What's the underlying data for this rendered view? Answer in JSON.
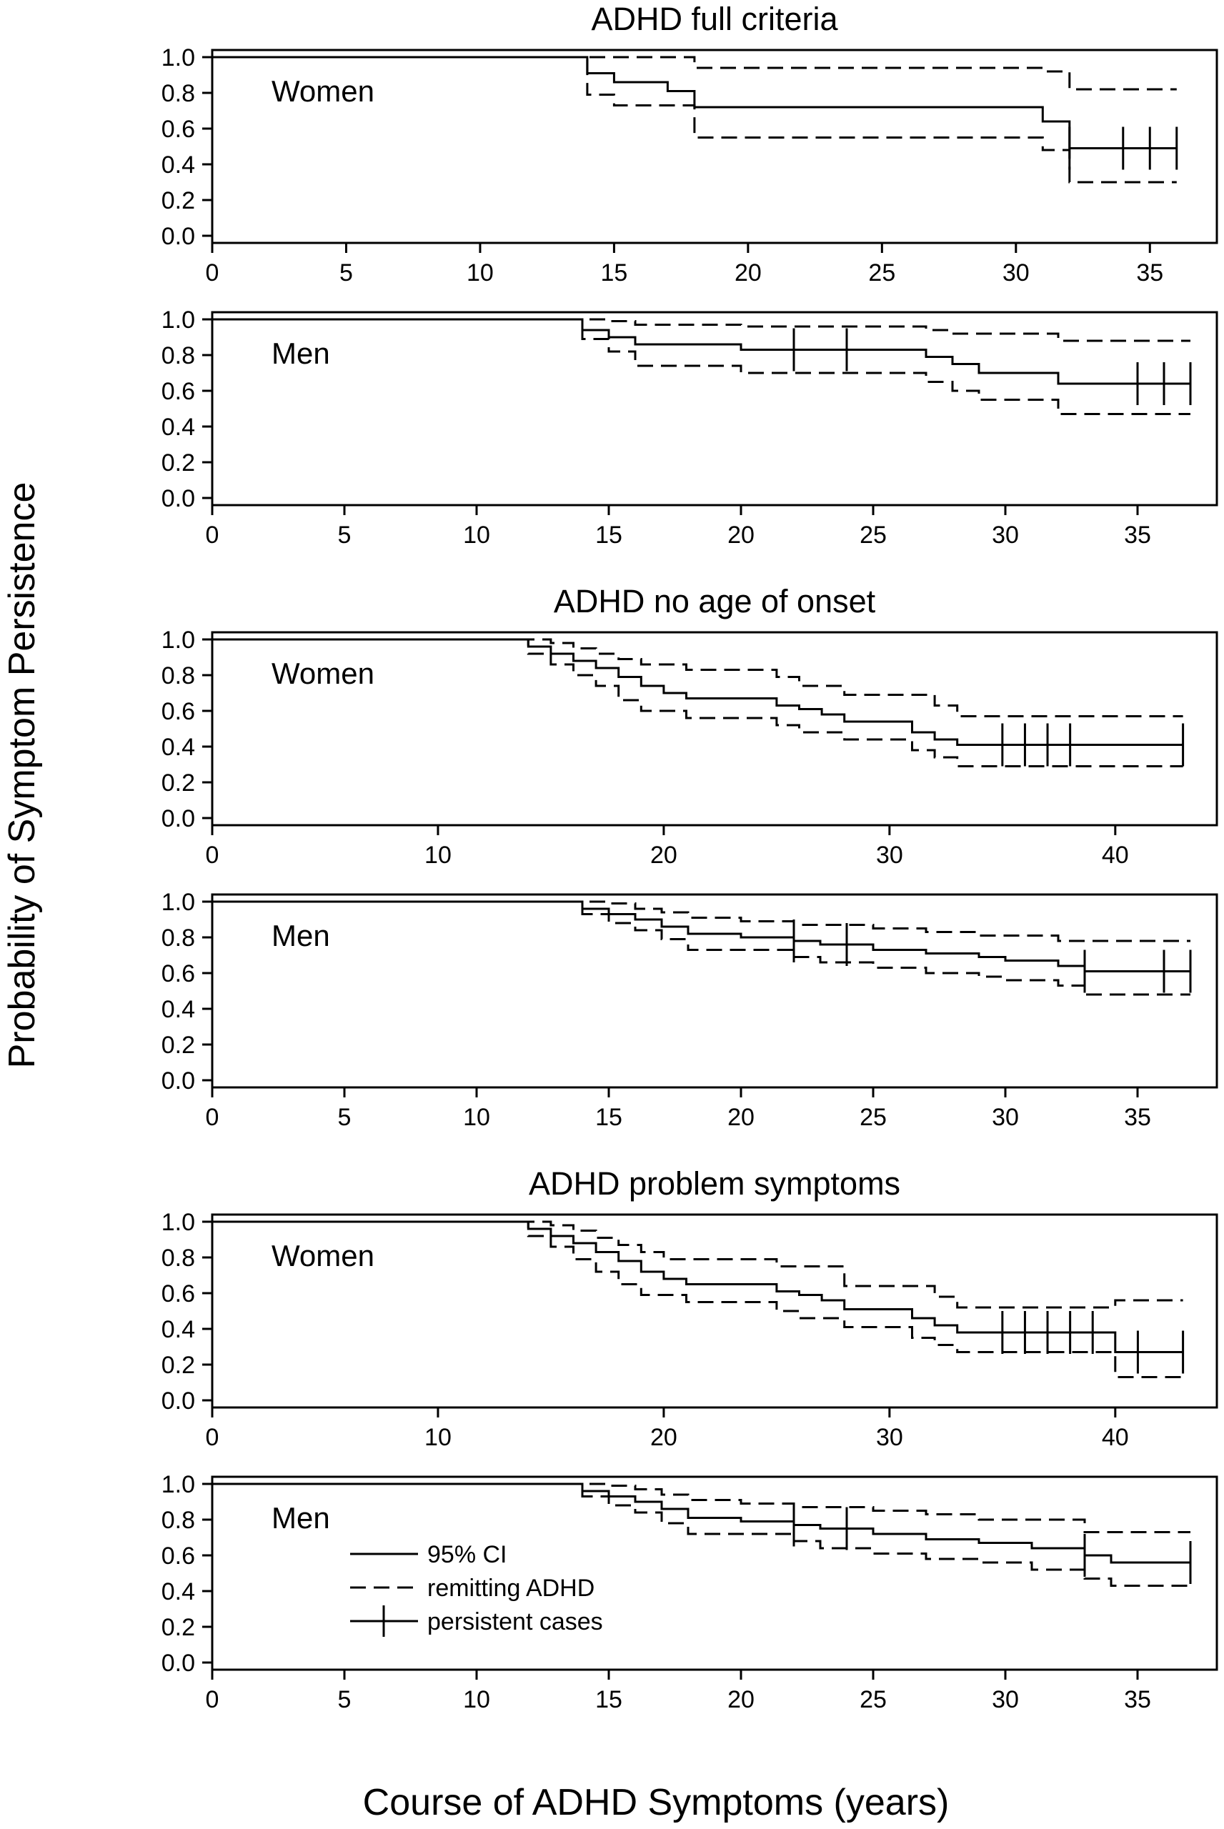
{
  "ylabel": "Probability of Symptom Persistence",
  "xlabel": "Course of ADHD Symptoms (years)",
  "legend": [
    {
      "label": "95% CI",
      "style": "solid"
    },
    {
      "label": "remitting ADHD",
      "style": "dashed"
    },
    {
      "label": "persistent cases",
      "style": "solid-tick"
    }
  ],
  "chart_data": [
    {
      "type": "line",
      "title": "ADHD full criteria",
      "label": "Women",
      "xlim": [
        0,
        37.5
      ],
      "ylim": [
        0,
        1
      ],
      "xticks": [
        0,
        5,
        10,
        15,
        20,
        25,
        30,
        35
      ],
      "yticks": [
        0.0,
        0.2,
        0.4,
        0.6,
        0.8,
        1.0
      ],
      "series": [
        {
          "style": "solid",
          "x": [
            0,
            14,
            15,
            17,
            18,
            31,
            32,
            36
          ],
          "y": [
            1.0,
            0.91,
            0.86,
            0.81,
            0.72,
            0.64,
            0.49,
            0.49
          ]
        },
        {
          "style": "dashed",
          "x": [
            0,
            14,
            18,
            31,
            32,
            36
          ],
          "y": [
            1.0,
            1.0,
            0.94,
            0.92,
            0.82,
            0.82
          ]
        },
        {
          "style": "dashed",
          "x": [
            0,
            14,
            15,
            18,
            31,
            32,
            36
          ],
          "y": [
            1.0,
            0.79,
            0.73,
            0.55,
            0.48,
            0.3,
            0.3
          ]
        }
      ],
      "censor": {
        "x": [
          32,
          34,
          35,
          36
        ],
        "y": 0.49
      }
    },
    {
      "type": "line",
      "title": "",
      "label": "Men",
      "xlim": [
        0,
        38
      ],
      "ylim": [
        0,
        1
      ],
      "xticks": [
        0,
        5,
        10,
        15,
        20,
        25,
        30,
        35
      ],
      "yticks": [
        0.0,
        0.2,
        0.4,
        0.6,
        0.8,
        1.0
      ],
      "series": [
        {
          "style": "solid",
          "x": [
            0,
            14,
            15,
            16,
            20,
            27,
            28,
            29,
            32,
            37
          ],
          "y": [
            1.0,
            0.94,
            0.9,
            0.86,
            0.83,
            0.79,
            0.75,
            0.7,
            0.64,
            0.64
          ]
        },
        {
          "style": "dashed",
          "x": [
            0,
            15,
            16,
            20,
            27,
            28,
            32,
            37
          ],
          "y": [
            1.0,
            0.99,
            0.97,
            0.96,
            0.94,
            0.92,
            0.88,
            0.88
          ]
        },
        {
          "style": "dashed",
          "x": [
            0,
            14,
            15,
            16,
            20,
            27,
            28,
            29,
            32,
            37
          ],
          "y": [
            1.0,
            0.89,
            0.82,
            0.74,
            0.7,
            0.65,
            0.6,
            0.55,
            0.47,
            0.47
          ]
        }
      ],
      "censor": {
        "x": [
          22,
          24,
          35,
          36,
          37
        ],
        "y": [
          0.83,
          0.83,
          0.64,
          0.64,
          0.64
        ]
      }
    },
    {
      "type": "line",
      "title": "ADHD no age of onset",
      "label": "Women",
      "xlim": [
        0,
        44.5
      ],
      "ylim": [
        0,
        1
      ],
      "xticks": [
        0,
        10,
        20,
        30,
        40
      ],
      "yticks": [
        0.0,
        0.2,
        0.4,
        0.6,
        0.8,
        1.0
      ],
      "series": [
        {
          "style": "solid",
          "x": [
            0,
            14,
            15,
            16,
            17,
            18,
            19,
            20,
            21,
            25,
            26,
            27,
            28,
            31,
            32,
            33,
            43
          ],
          "y": [
            1.0,
            0.96,
            0.92,
            0.88,
            0.84,
            0.79,
            0.74,
            0.7,
            0.67,
            0.63,
            0.61,
            0.58,
            0.54,
            0.48,
            0.44,
            0.41,
            0.41
          ]
        },
        {
          "style": "dashed",
          "x": [
            0,
            15,
            16,
            17,
            18,
            19,
            21,
            25,
            26,
            28,
            32,
            33,
            43
          ],
          "y": [
            1.0,
            0.98,
            0.95,
            0.92,
            0.89,
            0.86,
            0.83,
            0.79,
            0.74,
            0.69,
            0.63,
            0.57,
            0.57
          ]
        },
        {
          "style": "dashed",
          "x": [
            0,
            14,
            15,
            16,
            17,
            18,
            19,
            21,
            25,
            26,
            28,
            31,
            32,
            33,
            43
          ],
          "y": [
            1.0,
            0.92,
            0.86,
            0.8,
            0.74,
            0.66,
            0.6,
            0.56,
            0.52,
            0.48,
            0.44,
            0.38,
            0.34,
            0.29,
            0.29
          ]
        }
      ],
      "censor": {
        "x": [
          35,
          36,
          37,
          38,
          43
        ],
        "y": 0.41
      }
    },
    {
      "type": "line",
      "title": "",
      "label": "Men",
      "xlim": [
        0,
        38
      ],
      "ylim": [
        0,
        1
      ],
      "xticks": [
        0,
        5,
        10,
        15,
        20,
        25,
        30,
        35
      ],
      "yticks": [
        0.0,
        0.2,
        0.4,
        0.6,
        0.8,
        1.0
      ],
      "series": [
        {
          "style": "solid",
          "x": [
            0,
            14,
            15,
            16,
            17,
            18,
            20,
            22,
            23,
            25,
            27,
            29,
            30,
            32,
            33,
            37
          ],
          "y": [
            1.0,
            0.96,
            0.93,
            0.9,
            0.86,
            0.82,
            0.8,
            0.78,
            0.76,
            0.73,
            0.71,
            0.69,
            0.67,
            0.64,
            0.61,
            0.61
          ]
        },
        {
          "style": "dashed",
          "x": [
            0,
            15,
            16,
            17,
            18,
            20,
            22,
            25,
            27,
            29,
            32,
            37
          ],
          "y": [
            1.0,
            0.99,
            0.96,
            0.94,
            0.91,
            0.89,
            0.87,
            0.85,
            0.83,
            0.81,
            0.78,
            0.78
          ]
        },
        {
          "style": "dashed",
          "x": [
            0,
            14,
            15,
            16,
            17,
            18,
            22,
            23,
            25,
            27,
            29,
            30,
            32,
            33,
            37
          ],
          "y": [
            1.0,
            0.93,
            0.88,
            0.84,
            0.79,
            0.73,
            0.69,
            0.66,
            0.63,
            0.6,
            0.58,
            0.56,
            0.53,
            0.48,
            0.48
          ]
        }
      ],
      "censor": {
        "x": [
          22,
          24,
          33,
          36,
          37
        ],
        "y": [
          0.78,
          0.76,
          0.61,
          0.61,
          0.61
        ]
      }
    },
    {
      "type": "line",
      "title": "ADHD problem symptoms",
      "label": "Women",
      "xlim": [
        0,
        44.5
      ],
      "ylim": [
        0,
        1
      ],
      "xticks": [
        0,
        10,
        20,
        30,
        40
      ],
      "yticks": [
        0.0,
        0.2,
        0.4,
        0.6,
        0.8,
        1.0
      ],
      "series": [
        {
          "style": "solid",
          "x": [
            0,
            14,
            15,
            16,
            17,
            18,
            19,
            20,
            21,
            25,
            26,
            27,
            28,
            31,
            32,
            33,
            40,
            43
          ],
          "y": [
            1.0,
            0.96,
            0.92,
            0.88,
            0.83,
            0.78,
            0.72,
            0.68,
            0.65,
            0.61,
            0.59,
            0.56,
            0.51,
            0.46,
            0.42,
            0.38,
            0.27,
            0.27
          ]
        },
        {
          "style": "dashed",
          "x": [
            0,
            15,
            16,
            17,
            18,
            19,
            20,
            25,
            28,
            32,
            33,
            40,
            43
          ],
          "y": [
            1.0,
            0.98,
            0.95,
            0.91,
            0.87,
            0.83,
            0.79,
            0.75,
            0.64,
            0.58,
            0.52,
            0.56,
            0.56
          ]
        },
        {
          "style": "dashed",
          "x": [
            0,
            14,
            15,
            16,
            17,
            18,
            19,
            21,
            25,
            26,
            28,
            31,
            32,
            33,
            40,
            41,
            43
          ],
          "y": [
            1.0,
            0.92,
            0.86,
            0.79,
            0.72,
            0.65,
            0.59,
            0.55,
            0.5,
            0.46,
            0.41,
            0.35,
            0.31,
            0.27,
            0.13,
            0.13,
            0.13
          ]
        }
      ],
      "censor": {
        "x": [
          35,
          36,
          37,
          38,
          39,
          41,
          43
        ],
        "y": [
          0.38,
          0.38,
          0.38,
          0.38,
          0.38,
          0.27,
          0.27
        ]
      }
    },
    {
      "type": "line",
      "title": "",
      "label": "Men",
      "xlim": [
        0,
        38
      ],
      "ylim": [
        0,
        1
      ],
      "xticks": [
        0,
        5,
        10,
        15,
        20,
        25,
        30,
        35
      ],
      "yticks": [
        0.0,
        0.2,
        0.4,
        0.6,
        0.8,
        1.0
      ],
      "series": [
        {
          "style": "solid",
          "x": [
            0,
            14,
            15,
            16,
            17,
            18,
            20,
            22,
            23,
            25,
            27,
            29,
            31,
            33,
            34,
            37
          ],
          "y": [
            1.0,
            0.96,
            0.93,
            0.9,
            0.86,
            0.81,
            0.79,
            0.77,
            0.75,
            0.72,
            0.69,
            0.67,
            0.64,
            0.6,
            0.56,
            0.56
          ]
        },
        {
          "style": "dashed",
          "x": [
            0,
            15,
            16,
            17,
            18,
            20,
            22,
            25,
            27,
            29,
            33,
            37
          ],
          "y": [
            1.0,
            0.99,
            0.97,
            0.94,
            0.91,
            0.89,
            0.87,
            0.85,
            0.83,
            0.8,
            0.73,
            0.73
          ]
        },
        {
          "style": "dashed",
          "x": [
            0,
            14,
            15,
            16,
            17,
            18,
            22,
            23,
            25,
            27,
            29,
            31,
            33,
            34,
            37
          ],
          "y": [
            1.0,
            0.93,
            0.88,
            0.84,
            0.78,
            0.72,
            0.68,
            0.64,
            0.61,
            0.58,
            0.56,
            0.52,
            0.47,
            0.43,
            0.43
          ]
        }
      ],
      "censor": {
        "x": [
          22,
          24,
          33,
          37
        ],
        "y": [
          0.77,
          0.75,
          0.6,
          0.56
        ]
      }
    }
  ]
}
